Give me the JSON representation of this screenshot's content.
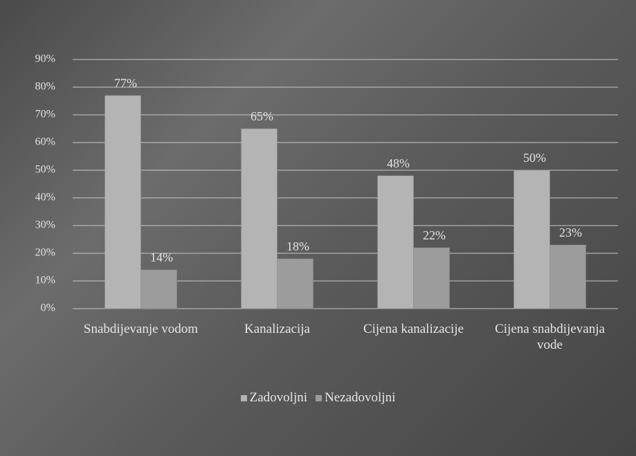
{
  "chart_data": {
    "type": "bar",
    "categories": [
      "Snabdijevanje vodom",
      "Kanalizacija",
      "Cijena kanalizacije",
      "Cijena snabdijevanja vode"
    ],
    "series": [
      {
        "name": "Zadovoljni",
        "color": "#b4b4b4",
        "values": [
          77,
          65,
          48,
          50
        ],
        "value_labels": [
          "77%",
          "65%",
          "48%",
          "50%"
        ]
      },
      {
        "name": "Nezadovoljni",
        "color": "#9c9c9c",
        "values": [
          14,
          18,
          22,
          23
        ],
        "value_labels": [
          "14%",
          "18%",
          "22%",
          "23%"
        ]
      }
    ],
    "ylim": [
      0,
      90
    ],
    "yticks": [
      {
        "value": 0,
        "label": "0%"
      },
      {
        "value": 10,
        "label": "10%"
      },
      {
        "value": 20,
        "label": "20%"
      },
      {
        "value": 30,
        "label": "30%"
      },
      {
        "value": 40,
        "label": "40%"
      },
      {
        "value": 50,
        "label": "50%"
      },
      {
        "value": 60,
        "label": "60%"
      },
      {
        "value": 70,
        "label": "70%"
      },
      {
        "value": 80,
        "label": "80%"
      },
      {
        "value": 90,
        "label": "90%"
      }
    ],
    "grid": true,
    "legend": "bottom"
  }
}
